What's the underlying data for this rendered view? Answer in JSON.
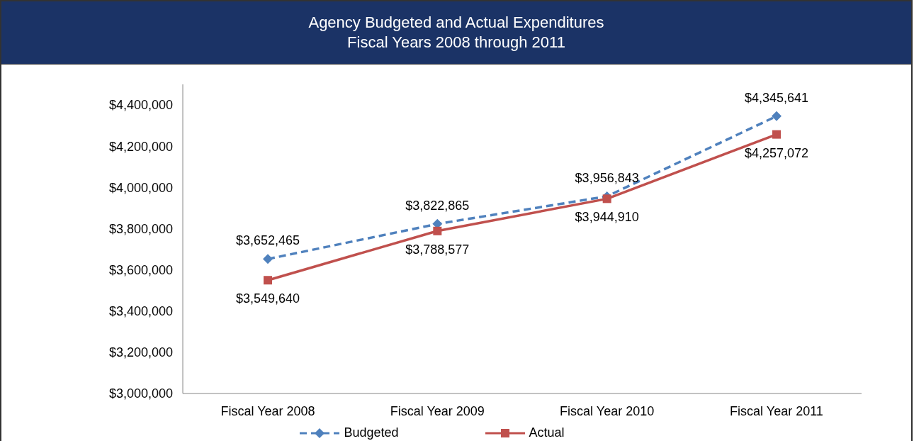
{
  "chart_data": {
    "type": "line",
    "title": "Agency Budgeted and Actual Expenditures",
    "subtitle": "Fiscal Years 2008 through 2011",
    "categories": [
      "Fiscal Year 2008",
      "Fiscal Year 2009",
      "Fiscal Year 2010",
      "Fiscal Year 2011"
    ],
    "series": [
      {
        "name": "Budgeted",
        "color": "#4f81bd",
        "values": [
          3652465,
          3822865,
          3956843,
          4345641
        ],
        "value_labels": [
          "$3,652,465",
          "$3,822,865",
          "$3,956,843",
          "$4,345,641"
        ],
        "marker": "diamond",
        "line_style": "dashed"
      },
      {
        "name": "Actual",
        "color": "#c0504d",
        "values": [
          3549640,
          3788577,
          3944910,
          4257072
        ],
        "value_labels": [
          "$3,549,640",
          "$3,788,577",
          "$3,944,910",
          "$4,257,072"
        ],
        "marker": "square",
        "line_style": "solid"
      }
    ],
    "ylim": [
      3000000,
      4500000
    ],
    "yticks": [
      {
        "value": 3000000,
        "label": "$3,000,000"
      },
      {
        "value": 3200000,
        "label": "$3,200,000"
      },
      {
        "value": 3400000,
        "label": "$3,400,000"
      },
      {
        "value": 3600000,
        "label": "$3,600,000"
      },
      {
        "value": 3800000,
        "label": "$3,800,000"
      },
      {
        "value": 4000000,
        "label": "$4,000,000"
      },
      {
        "value": 4200000,
        "label": "$4,200,000"
      },
      {
        "value": 4400000,
        "label": "$4,400,000"
      }
    ],
    "grid": false,
    "legend": "bottom"
  }
}
